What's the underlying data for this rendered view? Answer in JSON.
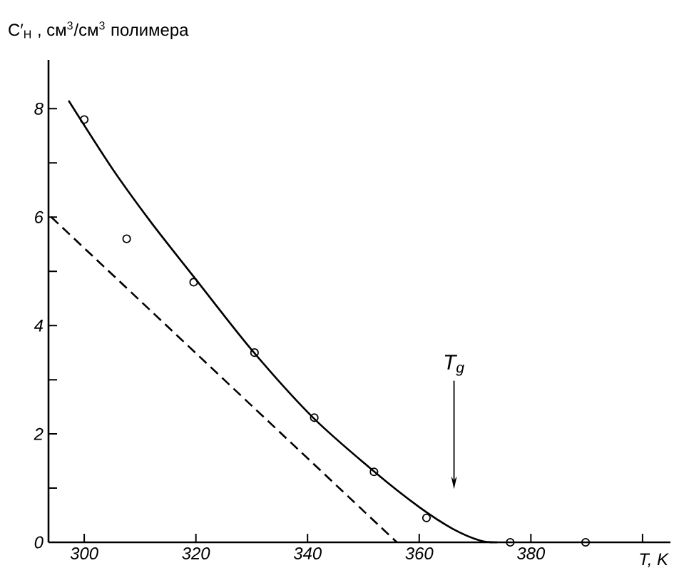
{
  "chart_data": {
    "type": "scatter",
    "xlabel": "T, K",
    "ylabel": "C′$_{H}$ , см$^{3}$/см$^{3}$ полимера",
    "xlim": [
      293.6,
      405
    ],
    "ylim": [
      0,
      8.9
    ],
    "xticks": [
      300,
      320,
      340,
      360,
      380,
      {
        "value": 400,
        "label": null
      }
    ],
    "yticks": [
      0,
      {
        "value": 1,
        "label": null
      },
      2,
      {
        "value": 3,
        "label": null
      },
      4,
      {
        "value": 5,
        "label": null
      },
      6,
      {
        "value": 7,
        "label": null
      },
      8
    ],
    "grid": false,
    "series": [
      {
        "color": "#000000",
        "marker": "circle",
        "x": [
          300,
          307.6,
          319.6,
          330.5,
          341.2,
          351.9,
          361.3,
          376.3,
          389.8
        ],
        "values": [
          7.8,
          5.6,
          4.8,
          3.5,
          2.3,
          1.3,
          0.45,
          0,
          0
        ]
      },
      {
        "type": "line",
        "color": "#000000",
        "line_style": "solid",
        "x": [
          297.2,
          305,
          312,
          320,
          330,
          341,
          352,
          360,
          366,
          371,
          374
        ],
        "values": [
          8.15,
          6.9,
          5.9,
          4.85,
          3.55,
          2.3,
          1.3,
          0.65,
          0.25,
          0.03,
          0
        ]
      },
      {
        "type": "line",
        "color": "#000000",
        "line_style": "dashed",
        "x": [
          294.1,
          356
        ],
        "values": [
          6.0,
          0
        ]
      }
    ],
    "annotations": [
      "T$_{g}$"
    ]
  }
}
